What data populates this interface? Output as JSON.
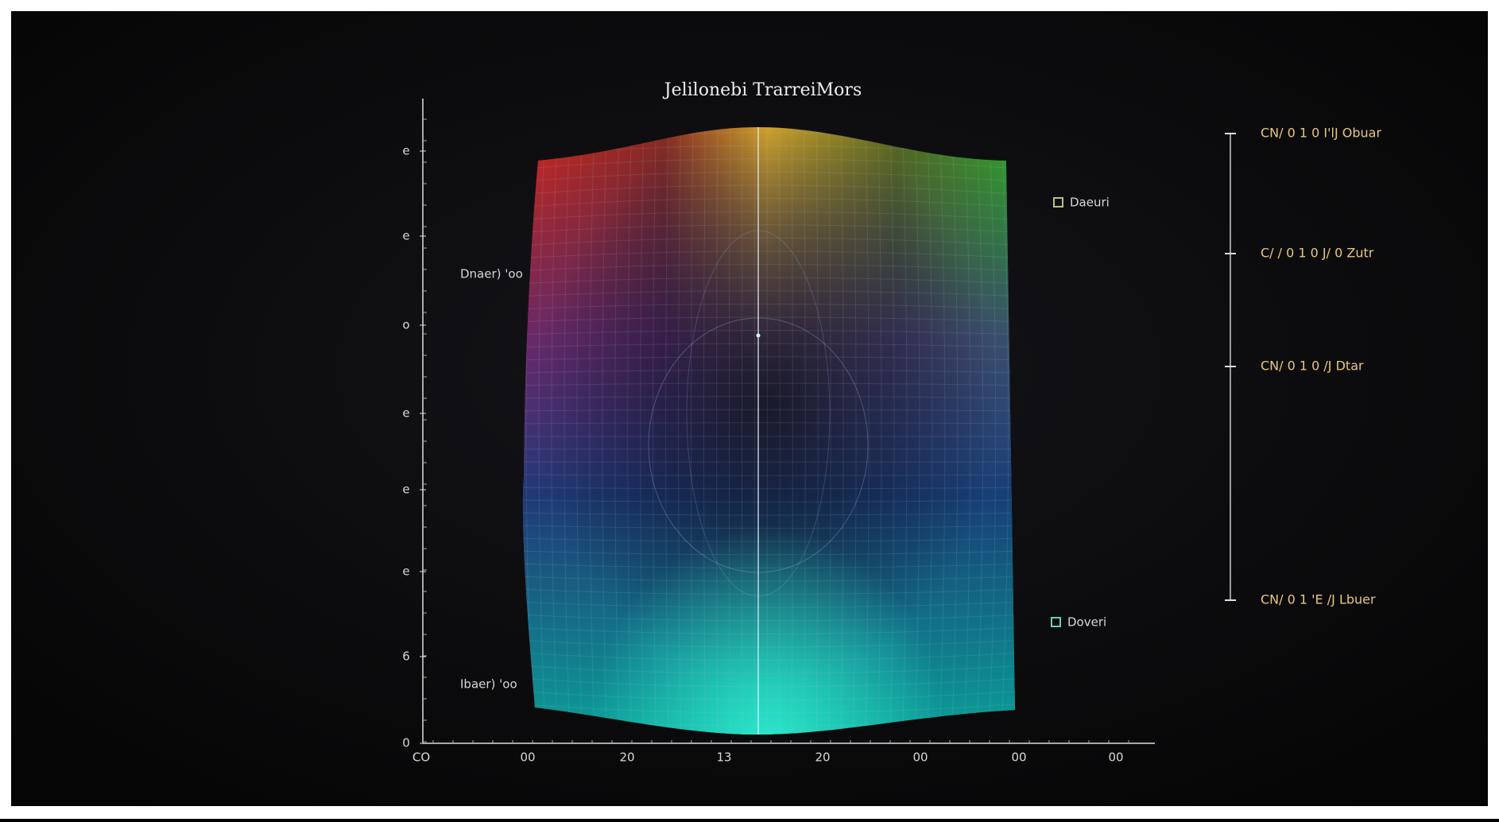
{
  "title": "Jelilonebi TrarreiMors",
  "y_axis": {
    "labels": [
      "e",
      "e",
      "o",
      "e",
      "e",
      "e",
      "6",
      "0"
    ]
  },
  "x_axis": {
    "labels": [
      "CO",
      "00",
      "20",
      "13",
      "20",
      "00",
      "00",
      "00"
    ]
  },
  "annotations": [
    "Dnaer) 'oo",
    "Ibaer) 'oo"
  ],
  "legend": [
    "Daeuri",
    "Doveri"
  ],
  "scale": {
    "labels": [
      "CN/ 0 1 0 I'lJ Obuar",
      "C/ / 0 1 0 J/ 0 Zutr",
      "CN/ 0 1 0 /J Dtar",
      "CN/ 0 1 'E /J Lbuer"
    ]
  }
}
